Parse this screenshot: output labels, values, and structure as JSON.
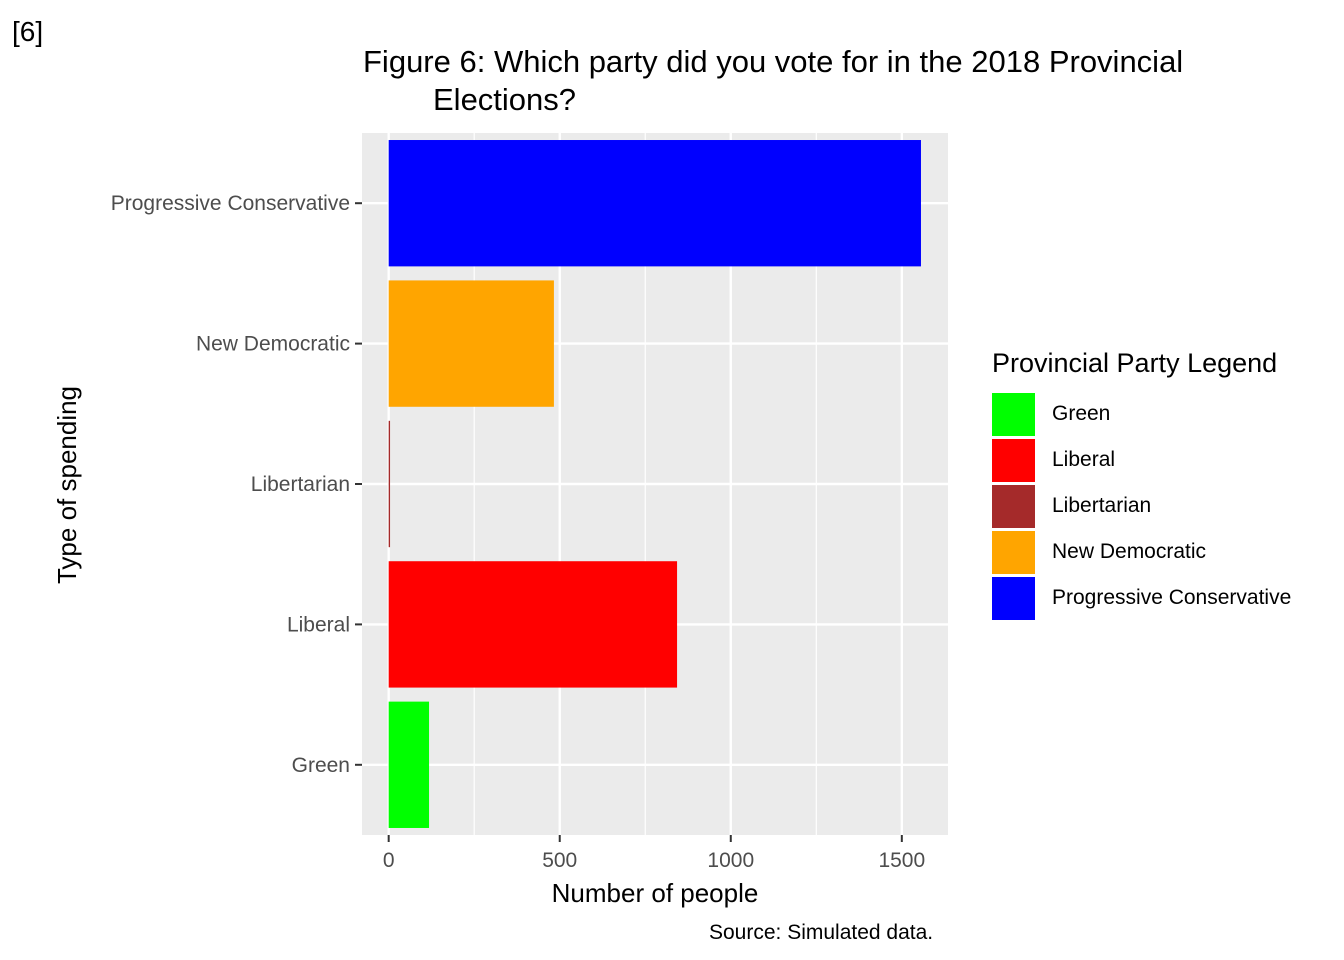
{
  "tag": "[6]",
  "title_line1": "Figure 6: Which party did you vote for in the 2018 Provincial",
  "title_line2": "Elections?",
  "caption": "Source: Simulated data.",
  "legend": {
    "title": "Provincial Party Legend",
    "items": [
      {
        "label": "Green",
        "color": "#00ff00"
      },
      {
        "label": "Liberal",
        "color": "#ff0000"
      },
      {
        "label": "Libertarian",
        "color": "#a52a2a"
      },
      {
        "label": "New Democratic",
        "color": "#ffa500"
      },
      {
        "label": "Progressive Conservative",
        "color": "#0000ff"
      }
    ]
  },
  "chart_data": {
    "type": "bar",
    "orientation": "horizontal",
    "categories": [
      "Green",
      "Liberal",
      "Libertarian",
      "New Democratic",
      "Progressive Conservative"
    ],
    "values": [
      118,
      843,
      4,
      483,
      1556
    ],
    "colors": [
      "#00ff00",
      "#ff0000",
      "#a52a2a",
      "#ffa500",
      "#0000ff"
    ],
    "xlabel": "Number of people",
    "ylabel": "Type of spending",
    "xlim": [
      -78,
      1635
    ],
    "xticks": [
      0,
      500,
      1000,
      1500
    ],
    "grid": true,
    "panel_background": "#ebebeb",
    "legend_position": "right"
  }
}
